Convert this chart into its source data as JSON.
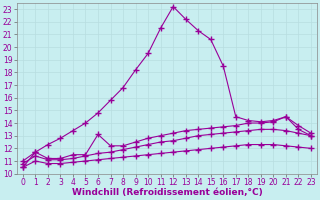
{
  "xlabel": "Windchill (Refroidissement éolien,°C)",
  "ylabel": "",
  "bg_color": "#c8eef0",
  "line_color": "#990099",
  "grid_color": "#b8dde0",
  "xlim": [
    -0.5,
    23.5
  ],
  "ylim": [
    10,
    23.5
  ],
  "xticks": [
    0,
    1,
    2,
    3,
    4,
    5,
    6,
    7,
    8,
    9,
    10,
    11,
    12,
    13,
    14,
    15,
    16,
    17,
    18,
    19,
    20,
    21,
    22,
    23
  ],
  "yticks": [
    10,
    11,
    12,
    13,
    14,
    15,
    16,
    17,
    18,
    19,
    20,
    21,
    22,
    23
  ],
  "lines": [
    {
      "x": [
        0,
        1,
        2,
        3,
        4,
        5,
        6,
        7,
        8,
        9,
        10,
        11,
        12,
        13,
        14,
        15,
        16,
        17,
        18,
        19,
        20,
        21,
        22,
        23
      ],
      "y": [
        10.5,
        11.7,
        12.3,
        12.8,
        13.4,
        14.0,
        14.8,
        15.8,
        16.8,
        18.2,
        19.5,
        21.5,
        23.2,
        22.2,
        21.3,
        20.6,
        18.5,
        14.5,
        14.2,
        14.1,
        14.2,
        14.5,
        13.5,
        13.0
      ]
    },
    {
      "x": [
        0,
        1,
        2,
        3,
        4,
        5,
        6,
        7,
        8,
        9,
        10,
        11,
        12,
        13,
        14,
        15,
        16,
        17,
        18,
        19,
        20,
        21,
        22,
        23
      ],
      "y": [
        11.0,
        11.7,
        11.2,
        11.2,
        11.5,
        11.5,
        13.1,
        12.2,
        12.2,
        12.5,
        12.8,
        13.0,
        13.2,
        13.4,
        13.5,
        13.6,
        13.7,
        13.8,
        14.0,
        14.0,
        14.1,
        14.5,
        13.8,
        13.2
      ]
    },
    {
      "x": [
        0,
        1,
        2,
        3,
        4,
        5,
        6,
        7,
        8,
        9,
        10,
        11,
        12,
        13,
        14,
        15,
        16,
        17,
        18,
        19,
        20,
        21,
        22,
        23
      ],
      "y": [
        10.8,
        11.4,
        11.1,
        11.1,
        11.2,
        11.4,
        11.6,
        11.7,
        11.9,
        12.1,
        12.3,
        12.5,
        12.6,
        12.8,
        13.0,
        13.1,
        13.2,
        13.3,
        13.4,
        13.5,
        13.5,
        13.4,
        13.2,
        13.0
      ]
    },
    {
      "x": [
        0,
        1,
        2,
        3,
        4,
        5,
        6,
        7,
        8,
        9,
        10,
        11,
        12,
        13,
        14,
        15,
        16,
        17,
        18,
        19,
        20,
        21,
        22,
        23
      ],
      "y": [
        10.5,
        11.0,
        10.8,
        10.8,
        10.9,
        11.0,
        11.1,
        11.2,
        11.3,
        11.4,
        11.5,
        11.6,
        11.7,
        11.8,
        11.9,
        12.0,
        12.1,
        12.2,
        12.3,
        12.3,
        12.3,
        12.2,
        12.1,
        12.0
      ]
    }
  ],
  "marker": "+",
  "markersize": 4,
  "markeredgewidth": 1.0,
  "linewidth": 0.8,
  "tick_fontsize": 5.5,
  "xlabel_fontsize": 6.5
}
